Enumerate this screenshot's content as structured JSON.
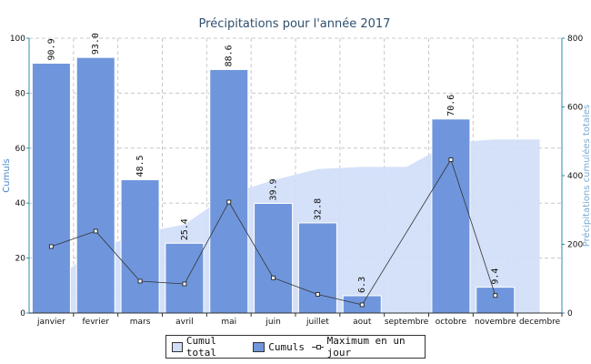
{
  "chart_data": {
    "type": "bar",
    "title": "Précipitations pour l'année 2017",
    "ylabel": "Cumuls",
    "y2label": "Précipitations cumulées totales",
    "ylim": [
      0,
      100
    ],
    "y2lim": [
      0,
      800
    ],
    "yticks": [
      "0",
      "20",
      "40",
      "60",
      "80",
      "100"
    ],
    "y2ticks": [
      "0",
      "200",
      "400",
      "600",
      "800"
    ],
    "categories": [
      "janvier",
      "fevrier",
      "mars",
      "avril",
      "mai",
      "juin",
      "juillet",
      "aout",
      "septembre",
      "octobre",
      "novembre",
      "decembre"
    ],
    "grid": true,
    "legend_position": "bottom",
    "series": [
      {
        "name": "Cumuls",
        "type": "bar",
        "axis": "left",
        "color": "#6f96dc",
        "values": [
          90.9,
          93.0,
          48.5,
          25.4,
          88.6,
          39.9,
          32.8,
          6.3,
          null,
          70.6,
          9.4,
          null
        ],
        "labels": [
          "90.9",
          "93.0",
          "48.5",
          "25.4",
          "88.6",
          "39.9",
          "32.8",
          "6.3",
          "",
          "70.6",
          "9.4",
          ""
        ]
      },
      {
        "name": "Cumul total",
        "type": "area",
        "axis": "right",
        "color": "#d0def8",
        "values": [
          90.9,
          183.9,
          232.4,
          257.8,
          346.4,
          386.3,
          419.1,
          425.4,
          425.4,
          496.0,
          505.4,
          505.4
        ]
      },
      {
        "name": "Maximum en un jour",
        "type": "line",
        "axis": "left",
        "color": "#333333",
        "values": [
          24.2,
          29.8,
          11.6,
          10.6,
          40.4,
          12.8,
          6.8,
          3.0,
          null,
          55.8,
          6.4,
          null
        ]
      }
    ]
  },
  "legend": {
    "items": [
      "Cumul total",
      "Cumuls",
      "Maximum en un jour"
    ]
  },
  "colors": {
    "title": "#2f4f6f",
    "left_axis_label": "#4a86c8",
    "right_axis_label": "#7aaad4",
    "axis": "#2e8bb0",
    "grid": "#c8c8c8"
  }
}
